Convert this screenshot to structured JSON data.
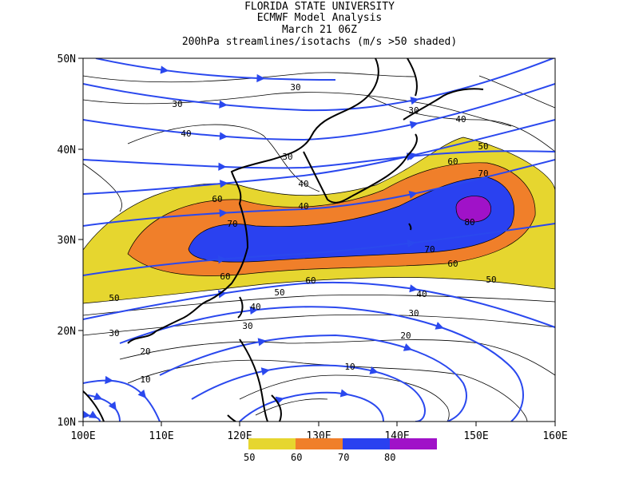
{
  "titles": [
    "FLORIDA STATE UNIVERSITY",
    "ECMWF Model Analysis",
    "March 21 06Z",
    "200hPa streamlines/isotachs (m/s >50 shaded)"
  ],
  "axes": {
    "x_ticks": [
      "100E",
      "110E",
      "120E",
      "130E",
      "140E",
      "150E",
      "160E"
    ],
    "y_ticks": [
      "50N",
      "40N",
      "30N",
      "20N",
      "10N"
    ]
  },
  "legend": {
    "items": [
      {
        "label": "50",
        "color": "#e6d62f"
      },
      {
        "label": "60",
        "color": "#f07f2a"
      },
      {
        "label": "70",
        "color": "#2a41f0"
      },
      {
        "label": "80",
        "color": "#a012c8"
      }
    ]
  },
  "contour_labels": [
    "30",
    "30",
    "30",
    "40",
    "40",
    "40",
    "30",
    "40",
    "50",
    "60",
    "70",
    "60",
    "70",
    "80",
    "70",
    "60",
    "50",
    "60",
    "50",
    "50",
    "60",
    "40",
    "40",
    "30",
    "30",
    "20",
    "20",
    "10",
    "10",
    "30"
  ],
  "colors": {
    "streamline": "#2a48ee",
    "isotach": "#000000",
    "coast": "#000000"
  }
}
